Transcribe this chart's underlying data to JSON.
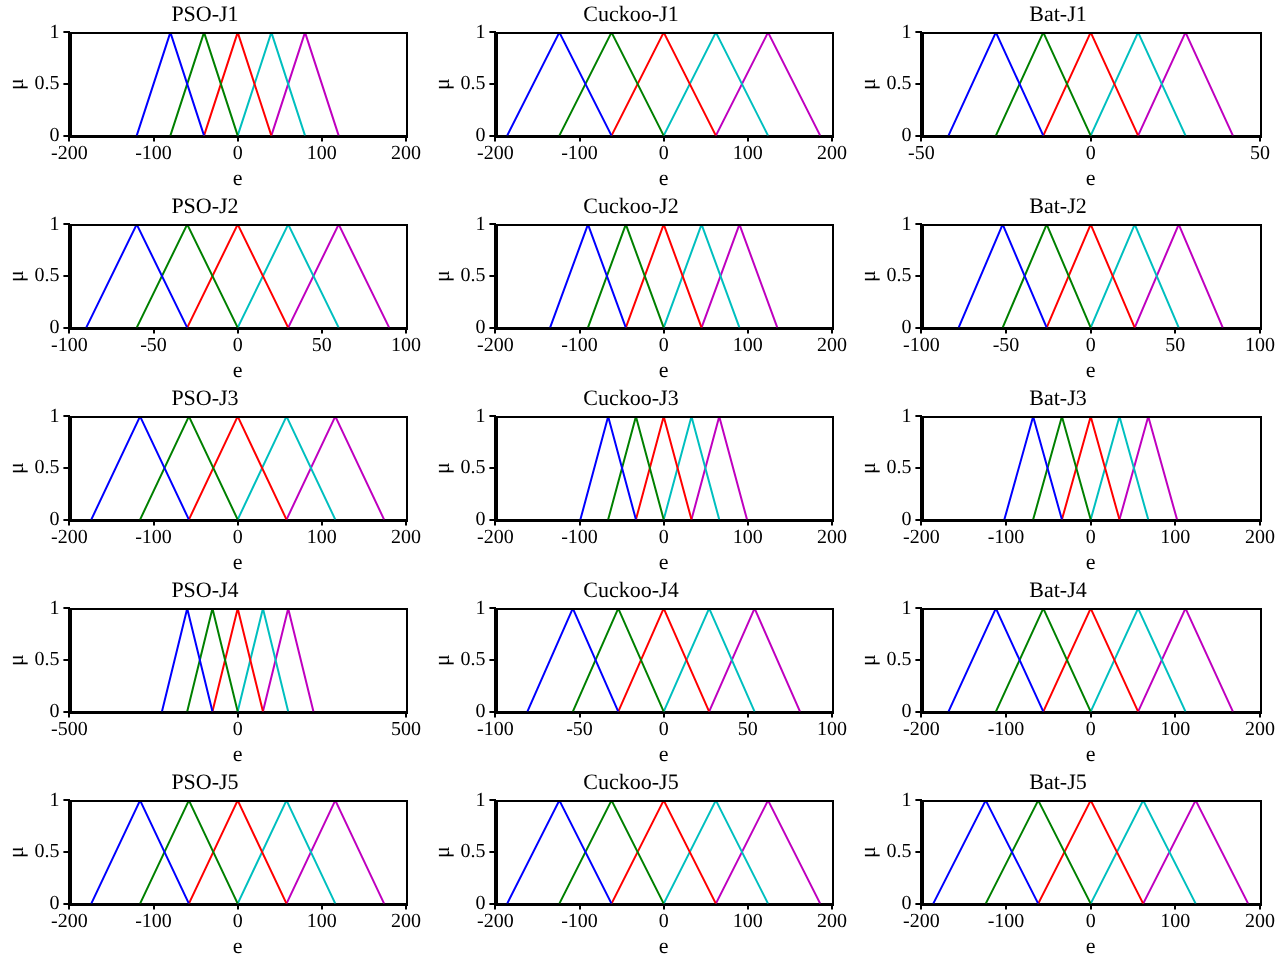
{
  "chart_data": [
    {
      "type": "line",
      "title": "PSO-J1",
      "xlabel": "e",
      "ylabel": "μ",
      "xlim": [
        -200,
        200
      ],
      "xticks": [
        -200,
        -100,
        0,
        100,
        200
      ],
      "ylim": [
        0,
        1
      ],
      "yticks": [
        0,
        0.5,
        1
      ],
      "grid": false,
      "legend": false,
      "marker": "none",
      "series": [
        {
          "color": "#0000ff",
          "x": [
            -120,
            -80,
            -40
          ],
          "values": [
            0,
            1,
            0
          ]
        },
        {
          "color": "#008000",
          "x": [
            -80,
            -40,
            0
          ],
          "values": [
            0,
            1,
            0
          ]
        },
        {
          "color": "#ff0000",
          "x": [
            -40,
            0,
            40
          ],
          "values": [
            0,
            1,
            0
          ]
        },
        {
          "color": "#00bfbf",
          "x": [
            0,
            40,
            80
          ],
          "values": [
            0,
            1,
            0
          ]
        },
        {
          "color": "#bf00bf",
          "x": [
            40,
            80,
            120
          ],
          "values": [
            0,
            1,
            0
          ]
        }
      ]
    },
    {
      "type": "line",
      "title": "Cuckoo-J1",
      "xlabel": "e",
      "ylabel": "μ",
      "xlim": [
        -200,
        200
      ],
      "xticks": [
        -200,
        -100,
        0,
        100,
        200
      ],
      "ylim": [
        0,
        1
      ],
      "yticks": [
        0,
        0.5,
        1
      ],
      "grid": false,
      "legend": false,
      "marker": "none",
      "series": [
        {
          "color": "#0000ff",
          "x": [
            -186,
            -124,
            -62
          ],
          "values": [
            0,
            1,
            0
          ]
        },
        {
          "color": "#008000",
          "x": [
            -124,
            -62,
            0
          ],
          "values": [
            0,
            1,
            0
          ]
        },
        {
          "color": "#ff0000",
          "x": [
            -62,
            0,
            62
          ],
          "values": [
            0,
            1,
            0
          ]
        },
        {
          "color": "#00bfbf",
          "x": [
            0,
            62,
            124
          ],
          "values": [
            0,
            1,
            0
          ]
        },
        {
          "color": "#bf00bf",
          "x": [
            62,
            124,
            186
          ],
          "values": [
            0,
            1,
            0
          ]
        }
      ]
    },
    {
      "type": "line",
      "title": "Bat-J1",
      "xlabel": "e",
      "ylabel": "μ",
      "xlim": [
        -50,
        50
      ],
      "xticks": [
        -50,
        0,
        50
      ],
      "ylim": [
        0,
        1
      ],
      "yticks": [
        0,
        0.5,
        1
      ],
      "grid": false,
      "legend": false,
      "marker": "none",
      "series": [
        {
          "color": "#0000ff",
          "x": [
            -42,
            -28,
            -14
          ],
          "values": [
            0,
            1,
            0
          ]
        },
        {
          "color": "#008000",
          "x": [
            -28,
            -14,
            0
          ],
          "values": [
            0,
            1,
            0
          ]
        },
        {
          "color": "#ff0000",
          "x": [
            -14,
            0,
            14
          ],
          "values": [
            0,
            1,
            0
          ]
        },
        {
          "color": "#00bfbf",
          "x": [
            0,
            14,
            28
          ],
          "values": [
            0,
            1,
            0
          ]
        },
        {
          "color": "#bf00bf",
          "x": [
            14,
            28,
            42
          ],
          "values": [
            0,
            1,
            0
          ]
        }
      ]
    },
    {
      "type": "line",
      "title": "PSO-J2",
      "xlabel": "e",
      "ylabel": "μ",
      "xlim": [
        -100,
        100
      ],
      "xticks": [
        -100,
        -50,
        0,
        50,
        100
      ],
      "ylim": [
        0,
        1
      ],
      "yticks": [
        0,
        0.5,
        1
      ],
      "grid": false,
      "legend": false,
      "marker": "none",
      "series": [
        {
          "color": "#0000ff",
          "x": [
            -90,
            -60,
            -30
          ],
          "values": [
            0,
            1,
            0
          ]
        },
        {
          "color": "#008000",
          "x": [
            -60,
            -30,
            0
          ],
          "values": [
            0,
            1,
            0
          ]
        },
        {
          "color": "#ff0000",
          "x": [
            -30,
            0,
            30
          ],
          "values": [
            0,
            1,
            0
          ]
        },
        {
          "color": "#00bfbf",
          "x": [
            0,
            30,
            60
          ],
          "values": [
            0,
            1,
            0
          ]
        },
        {
          "color": "#bf00bf",
          "x": [
            30,
            60,
            90
          ],
          "values": [
            0,
            1,
            0
          ]
        }
      ]
    },
    {
      "type": "line",
      "title": "Cuckoo-J2",
      "xlabel": "e",
      "ylabel": "μ",
      "xlim": [
        -200,
        200
      ],
      "xticks": [
        -200,
        -100,
        0,
        100,
        200
      ],
      "ylim": [
        0,
        1
      ],
      "yticks": [
        0,
        0.5,
        1
      ],
      "grid": false,
      "legend": false,
      "marker": "none",
      "series": [
        {
          "color": "#0000ff",
          "x": [
            -135,
            -90,
            -45
          ],
          "values": [
            0,
            1,
            0
          ]
        },
        {
          "color": "#008000",
          "x": [
            -90,
            -45,
            0
          ],
          "values": [
            0,
            1,
            0
          ]
        },
        {
          "color": "#ff0000",
          "x": [
            -45,
            0,
            45
          ],
          "values": [
            0,
            1,
            0
          ]
        },
        {
          "color": "#00bfbf",
          "x": [
            0,
            45,
            90
          ],
          "values": [
            0,
            1,
            0
          ]
        },
        {
          "color": "#bf00bf",
          "x": [
            45,
            90,
            135
          ],
          "values": [
            0,
            1,
            0
          ]
        }
      ]
    },
    {
      "type": "line",
      "title": "Bat-J2",
      "xlabel": "e",
      "ylabel": "μ",
      "xlim": [
        -100,
        100
      ],
      "xticks": [
        -100,
        -50,
        0,
        50,
        100
      ],
      "ylim": [
        0,
        1
      ],
      "yticks": [
        0,
        0.5,
        1
      ],
      "grid": false,
      "legend": false,
      "marker": "none",
      "series": [
        {
          "color": "#0000ff",
          "x": [
            -78,
            -52,
            -26
          ],
          "values": [
            0,
            1,
            0
          ]
        },
        {
          "color": "#008000",
          "x": [
            -52,
            -26,
            0
          ],
          "values": [
            0,
            1,
            0
          ]
        },
        {
          "color": "#ff0000",
          "x": [
            -26,
            0,
            26
          ],
          "values": [
            0,
            1,
            0
          ]
        },
        {
          "color": "#00bfbf",
          "x": [
            0,
            26,
            52
          ],
          "values": [
            0,
            1,
            0
          ]
        },
        {
          "color": "#bf00bf",
          "x": [
            26,
            52,
            78
          ],
          "values": [
            0,
            1,
            0
          ]
        }
      ]
    },
    {
      "type": "line",
      "title": "PSO-J3",
      "xlabel": "e",
      "ylabel": "μ",
      "xlim": [
        -200,
        200
      ],
      "xticks": [
        -200,
        -100,
        0,
        100,
        200
      ],
      "ylim": [
        0,
        1
      ],
      "yticks": [
        0,
        0.5,
        1
      ],
      "grid": false,
      "legend": false,
      "marker": "none",
      "series": [
        {
          "color": "#0000ff",
          "x": [
            -174,
            -116,
            -58
          ],
          "values": [
            0,
            1,
            0
          ]
        },
        {
          "color": "#008000",
          "x": [
            -116,
            -58,
            0
          ],
          "values": [
            0,
            1,
            0
          ]
        },
        {
          "color": "#ff0000",
          "x": [
            -58,
            0,
            58
          ],
          "values": [
            0,
            1,
            0
          ]
        },
        {
          "color": "#00bfbf",
          "x": [
            0,
            58,
            116
          ],
          "values": [
            0,
            1,
            0
          ]
        },
        {
          "color": "#bf00bf",
          "x": [
            58,
            116,
            174
          ],
          "values": [
            0,
            1,
            0
          ]
        }
      ]
    },
    {
      "type": "line",
      "title": "Cuckoo-J3",
      "xlabel": "e",
      "ylabel": "μ",
      "xlim": [
        -200,
        200
      ],
      "xticks": [
        -200,
        -100,
        0,
        100,
        200
      ],
      "ylim": [
        0,
        1
      ],
      "yticks": [
        0,
        0.5,
        1
      ],
      "grid": false,
      "legend": false,
      "marker": "none",
      "series": [
        {
          "color": "#0000ff",
          "x": [
            -99,
            -66,
            -33
          ],
          "values": [
            0,
            1,
            0
          ]
        },
        {
          "color": "#008000",
          "x": [
            -66,
            -33,
            0
          ],
          "values": [
            0,
            1,
            0
          ]
        },
        {
          "color": "#ff0000",
          "x": [
            -33,
            0,
            33
          ],
          "values": [
            0,
            1,
            0
          ]
        },
        {
          "color": "#00bfbf",
          "x": [
            0,
            33,
            66
          ],
          "values": [
            0,
            1,
            0
          ]
        },
        {
          "color": "#bf00bf",
          "x": [
            33,
            66,
            99
          ],
          "values": [
            0,
            1,
            0
          ]
        }
      ]
    },
    {
      "type": "line",
      "title": "Bat-J3",
      "xlabel": "e",
      "ylabel": "μ",
      "xlim": [
        -200,
        200
      ],
      "xticks": [
        -200,
        -100,
        0,
        100,
        200
      ],
      "ylim": [
        0,
        1
      ],
      "yticks": [
        0,
        0.5,
        1
      ],
      "grid": false,
      "legend": false,
      "marker": "none",
      "series": [
        {
          "color": "#0000ff",
          "x": [
            -102,
            -68,
            -34
          ],
          "values": [
            0,
            1,
            0
          ]
        },
        {
          "color": "#008000",
          "x": [
            -68,
            -34,
            0
          ],
          "values": [
            0,
            1,
            0
          ]
        },
        {
          "color": "#ff0000",
          "x": [
            -34,
            0,
            34
          ],
          "values": [
            0,
            1,
            0
          ]
        },
        {
          "color": "#00bfbf",
          "x": [
            0,
            34,
            68
          ],
          "values": [
            0,
            1,
            0
          ]
        },
        {
          "color": "#bf00bf",
          "x": [
            34,
            68,
            102
          ],
          "values": [
            0,
            1,
            0
          ]
        }
      ]
    },
    {
      "type": "line",
      "title": "PSO-J4",
      "xlabel": "e",
      "ylabel": "μ",
      "xlim": [
        -500,
        500
      ],
      "xticks": [
        -500,
        0,
        500
      ],
      "ylim": [
        0,
        1
      ],
      "yticks": [
        0,
        0.5,
        1
      ],
      "grid": false,
      "legend": false,
      "marker": "none",
      "series": [
        {
          "color": "#0000ff",
          "x": [
            -225,
            -150,
            -75
          ],
          "values": [
            0,
            1,
            0
          ]
        },
        {
          "color": "#008000",
          "x": [
            -150,
            -75,
            0
          ],
          "values": [
            0,
            1,
            0
          ]
        },
        {
          "color": "#ff0000",
          "x": [
            -75,
            0,
            75
          ],
          "values": [
            0,
            1,
            0
          ]
        },
        {
          "color": "#00bfbf",
          "x": [
            0,
            75,
            150
          ],
          "values": [
            0,
            1,
            0
          ]
        },
        {
          "color": "#bf00bf",
          "x": [
            75,
            150,
            225
          ],
          "values": [
            0,
            1,
            0
          ]
        }
      ]
    },
    {
      "type": "line",
      "title": "Cuckoo-J4",
      "xlabel": "e",
      "ylabel": "μ",
      "xlim": [
        -100,
        100
      ],
      "xticks": [
        -100,
        -50,
        0,
        50,
        100
      ],
      "ylim": [
        0,
        1
      ],
      "yticks": [
        0,
        0.5,
        1
      ],
      "grid": false,
      "legend": false,
      "marker": "none",
      "series": [
        {
          "color": "#0000ff",
          "x": [
            -81,
            -54,
            -27
          ],
          "values": [
            0,
            1,
            0
          ]
        },
        {
          "color": "#008000",
          "x": [
            -54,
            -27,
            0
          ],
          "values": [
            0,
            1,
            0
          ]
        },
        {
          "color": "#ff0000",
          "x": [
            -27,
            0,
            27
          ],
          "values": [
            0,
            1,
            0
          ]
        },
        {
          "color": "#00bfbf",
          "x": [
            0,
            27,
            54
          ],
          "values": [
            0,
            1,
            0
          ]
        },
        {
          "color": "#bf00bf",
          "x": [
            27,
            54,
            81
          ],
          "values": [
            0,
            1,
            0
          ]
        }
      ]
    },
    {
      "type": "line",
      "title": "Bat-J4",
      "xlabel": "e",
      "ylabel": "μ",
      "xlim": [
        -200,
        200
      ],
      "xticks": [
        -200,
        -100,
        0,
        100,
        200
      ],
      "ylim": [
        0,
        1
      ],
      "yticks": [
        0,
        0.5,
        1
      ],
      "grid": false,
      "legend": false,
      "marker": "none",
      "series": [
        {
          "color": "#0000ff",
          "x": [
            -168,
            -112,
            -56
          ],
          "values": [
            0,
            1,
            0
          ]
        },
        {
          "color": "#008000",
          "x": [
            -112,
            -56,
            0
          ],
          "values": [
            0,
            1,
            0
          ]
        },
        {
          "color": "#ff0000",
          "x": [
            -56,
            0,
            56
          ],
          "values": [
            0,
            1,
            0
          ]
        },
        {
          "color": "#00bfbf",
          "x": [
            0,
            56,
            112
          ],
          "values": [
            0,
            1,
            0
          ]
        },
        {
          "color": "#bf00bf",
          "x": [
            56,
            112,
            168
          ],
          "values": [
            0,
            1,
            0
          ]
        }
      ]
    },
    {
      "type": "line",
      "title": "PSO-J5",
      "xlabel": "e",
      "ylabel": "μ",
      "xlim": [
        -200,
        200
      ],
      "xticks": [
        -200,
        -100,
        0,
        100,
        200
      ],
      "ylim": [
        0,
        1
      ],
      "yticks": [
        0,
        0.5,
        1
      ],
      "grid": false,
      "legend": false,
      "marker": "none",
      "series": [
        {
          "color": "#0000ff",
          "x": [
            -174,
            -116,
            -58
          ],
          "values": [
            0,
            1,
            0
          ]
        },
        {
          "color": "#008000",
          "x": [
            -116,
            -58,
            0
          ],
          "values": [
            0,
            1,
            0
          ]
        },
        {
          "color": "#ff0000",
          "x": [
            -58,
            0,
            58
          ],
          "values": [
            0,
            1,
            0
          ]
        },
        {
          "color": "#00bfbf",
          "x": [
            0,
            58,
            116
          ],
          "values": [
            0,
            1,
            0
          ]
        },
        {
          "color": "#bf00bf",
          "x": [
            58,
            116,
            174
          ],
          "values": [
            0,
            1,
            0
          ]
        }
      ]
    },
    {
      "type": "line",
      "title": "Cuckoo-J5",
      "xlabel": "e",
      "ylabel": "μ",
      "xlim": [
        -200,
        200
      ],
      "xticks": [
        -200,
        -100,
        0,
        100,
        200
      ],
      "ylim": [
        0,
        1
      ],
      "yticks": [
        0,
        0.5,
        1
      ],
      "grid": false,
      "legend": false,
      "marker": "none",
      "series": [
        {
          "color": "#0000ff",
          "x": [
            -186,
            -124,
            -62
          ],
          "values": [
            0,
            1,
            0
          ]
        },
        {
          "color": "#008000",
          "x": [
            -124,
            -62,
            0
          ],
          "values": [
            0,
            1,
            0
          ]
        },
        {
          "color": "#ff0000",
          "x": [
            -62,
            0,
            62
          ],
          "values": [
            0,
            1,
            0
          ]
        },
        {
          "color": "#00bfbf",
          "x": [
            0,
            62,
            124
          ],
          "values": [
            0,
            1,
            0
          ]
        },
        {
          "color": "#bf00bf",
          "x": [
            62,
            124,
            186
          ],
          "values": [
            0,
            1,
            0
          ]
        }
      ]
    },
    {
      "type": "line",
      "title": "Bat-J5",
      "xlabel": "e",
      "ylabel": "μ",
      "xlim": [
        -200,
        200
      ],
      "xticks": [
        -200,
        -100,
        0,
        100,
        200
      ],
      "ylim": [
        0,
        1
      ],
      "yticks": [
        0,
        0.5,
        1
      ],
      "grid": false,
      "legend": false,
      "marker": "none",
      "series": [
        {
          "color": "#0000ff",
          "x": [
            -186,
            -124,
            -62
          ],
          "values": [
            0,
            1,
            0
          ]
        },
        {
          "color": "#008000",
          "x": [
            -124,
            -62,
            0
          ],
          "values": [
            0,
            1,
            0
          ]
        },
        {
          "color": "#ff0000",
          "x": [
            -62,
            0,
            62
          ],
          "values": [
            0,
            1,
            0
          ]
        },
        {
          "color": "#00bfbf",
          "x": [
            0,
            62,
            124
          ],
          "values": [
            0,
            1,
            0
          ]
        },
        {
          "color": "#bf00bf",
          "x": [
            62,
            124,
            186
          ],
          "values": [
            0,
            1,
            0
          ]
        }
      ]
    }
  ]
}
